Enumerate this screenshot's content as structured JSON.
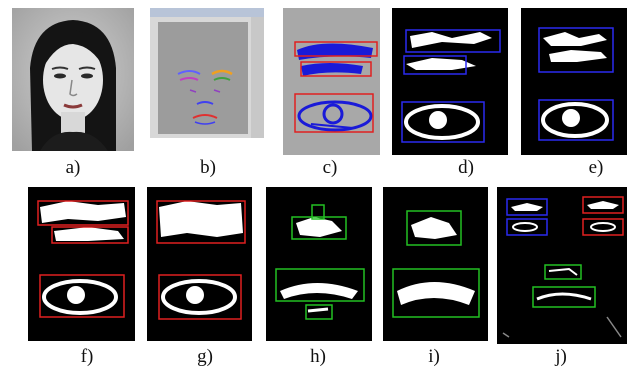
{
  "figure": {
    "panels": [
      {
        "id": "a",
        "label": "a)"
      },
      {
        "id": "b",
        "label": "b)"
      },
      {
        "id": "c",
        "label": "c)"
      },
      {
        "id": "d",
        "label": "d)"
      },
      {
        "id": "e",
        "label": "e)"
      },
      {
        "id": "f",
        "label": "f)"
      },
      {
        "id": "g",
        "label": "g)"
      },
      {
        "id": "h",
        "label": "h)"
      },
      {
        "id": "i",
        "label": "i)"
      },
      {
        "id": "j",
        "label": "j)"
      }
    ],
    "colors": {
      "box_blue": "#2a2af0",
      "box_red": "#e02020",
      "box_green": "#22c022",
      "feature_blue": "#1a1ad8",
      "feature_white": "#ffffff",
      "background_black": "#000000",
      "background_gray": "#a8a8a8"
    }
  }
}
